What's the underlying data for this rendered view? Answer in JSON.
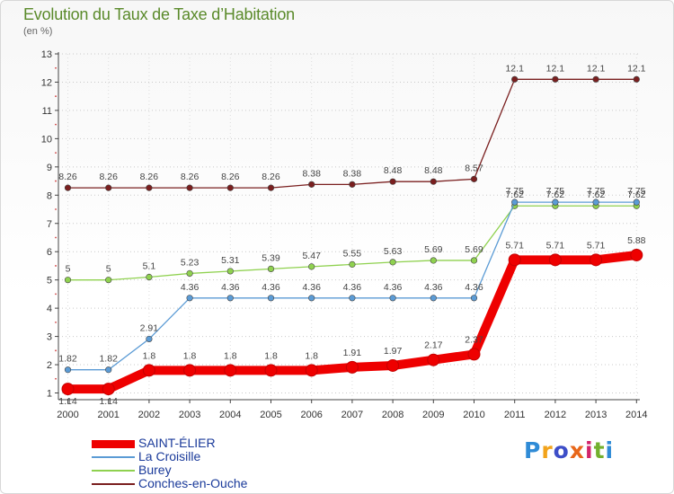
{
  "header": {
    "title": "Evolution du Taux de Taxe d’Habitation",
    "unit": "(en %)"
  },
  "logo": {
    "text": "Proxiti",
    "colors": [
      "#2f8bd6",
      "#f2a31b",
      "#3d4ec8",
      "#e8671a",
      "#d2236b",
      "#73b02e"
    ]
  },
  "chart_data": {
    "type": "line",
    "title": "Evolution du Taux de Taxe d’Habitation",
    "ylabel": "(en %)",
    "xlabel": "",
    "x": [
      2000,
      2001,
      2002,
      2003,
      2004,
      2005,
      2006,
      2007,
      2008,
      2009,
      2010,
      2011,
      2012,
      2013,
      2014
    ],
    "ylim": [
      1,
      13
    ],
    "yticks": [
      1,
      2,
      3,
      4,
      5,
      6,
      7,
      8,
      9,
      10,
      11,
      12,
      13
    ],
    "grid": "horizontal dotted",
    "legend_position": "bottom-left",
    "series": [
      {
        "name": "Conches-en-Ouche",
        "color": "#7a1f1f",
        "style": "thin",
        "values": [
          8.26,
          8.26,
          8.26,
          8.26,
          8.26,
          8.26,
          8.38,
          8.38,
          8.48,
          8.48,
          8.57,
          12.1,
          12.1,
          12.1,
          12.1
        ],
        "labels": [
          "8.26",
          "8.26",
          "8.26",
          "8.26",
          "8.26",
          "8.26",
          "8.38",
          "8.38",
          "8.48",
          "8.48",
          "8.57",
          "12.1",
          "12.1",
          "12.1",
          "12.1"
        ]
      },
      {
        "name": "Burey",
        "color": "#8fd14f",
        "style": "thin",
        "values": [
          5,
          5,
          5.1,
          5.23,
          5.31,
          5.39,
          5.47,
          5.55,
          5.63,
          5.69,
          5.69,
          7.62,
          7.62,
          7.62,
          7.62
        ],
        "labels": [
          "5",
          "5",
          "5.1",
          "5.23",
          "5.31",
          "5.39",
          "5.47",
          "5.55",
          "5.63",
          "5.69",
          "5.69",
          "7.62",
          "7.62",
          "7.62",
          "7.62"
        ]
      },
      {
        "name": "La Croisille",
        "color": "#5b9bd5",
        "style": "thin",
        "values": [
          1.82,
          1.82,
          2.91,
          4.36,
          4.36,
          4.36,
          4.36,
          4.36,
          4.36,
          4.36,
          4.36,
          7.75,
          7.75,
          7.75,
          7.75
        ],
        "labels": [
          "1.82",
          "1.82",
          "2.91",
          "4.36",
          "4.36",
          "4.36",
          "4.36",
          "4.36",
          "4.36",
          "4.36",
          "4.36",
          "7.75",
          "7.75",
          "7.75",
          "7.75"
        ]
      },
      {
        "name": "SAINT-ÉLIER",
        "color": "#ee0000",
        "style": "thick",
        "values": [
          1.14,
          1.14,
          1.8,
          1.8,
          1.8,
          1.8,
          1.8,
          1.91,
          1.97,
          2.17,
          2.37,
          5.71,
          5.71,
          5.71,
          5.88
        ],
        "labels": [
          "1.14",
          "1.14",
          "1.8",
          "1.8",
          "1.8",
          "1.8",
          "1.8",
          "1.91",
          "1.97",
          "2.17",
          "2.37",
          "5.71",
          "5.71",
          "5.71",
          "5.88"
        ]
      }
    ],
    "legend_order": [
      "SAINT-ÉLIER",
      "La Croisille",
      "Burey",
      "Conches-en-Ouche"
    ]
  }
}
